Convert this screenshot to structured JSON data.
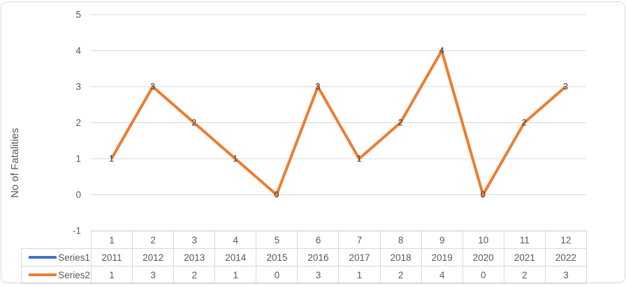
{
  "chart_data": {
    "type": "line",
    "title": "",
    "categories": [
      "1",
      "2",
      "3",
      "4",
      "5",
      "6",
      "7",
      "8",
      "9",
      "10",
      "11",
      "12"
    ],
    "series": [
      {
        "name": "Series1",
        "color": "#4472C4",
        "values": [
          2011,
          2012,
          2013,
          2014,
          2015,
          2016,
          2017,
          2018,
          2019,
          2020,
          2021,
          2022
        ]
      },
      {
        "name": "Series2",
        "color": "#ED7D31",
        "values": [
          1,
          3,
          2,
          1,
          0,
          3,
          1,
          2,
          4,
          0,
          2,
          3
        ]
      }
    ],
    "xlabel": "",
    "ylabel": "No of Fatalities",
    "ylim": [
      -1,
      5
    ],
    "yticks": [
      5,
      4,
      3,
      2,
      1,
      0,
      -1
    ],
    "grid": true,
    "data_labels": true,
    "legend_position": "data-table-left"
  },
  "colors": {
    "gridline": "#D9D9D9",
    "table_border": "#D9D9D9",
    "axis_text": "#595959",
    "data_label_text": "#404040",
    "series1": "#4472C4",
    "series2": "#ED7D31",
    "background": "#FFFFFF"
  }
}
